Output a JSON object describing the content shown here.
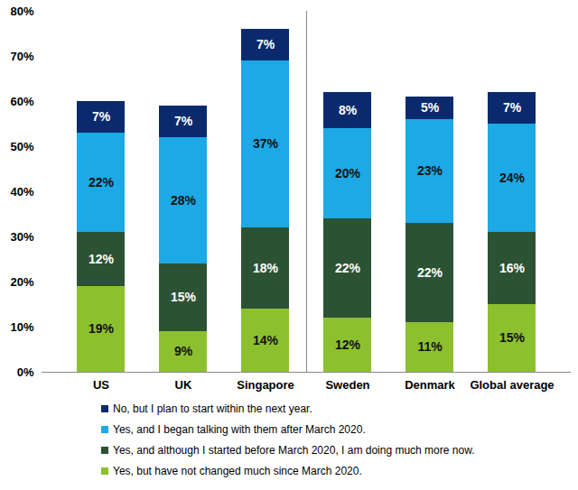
{
  "chart_data": {
    "type": "bar",
    "stacked": true,
    "data_labels": true,
    "grid": false,
    "legend": "bottom",
    "categories": [
      "US",
      "UK",
      "Singapore",
      "Sweden",
      "Denmark",
      "Global average"
    ],
    "series": [
      {
        "name": "Yes, but have not changed much since March 2020.",
        "color": "#8dc02f",
        "values": [
          19,
          9,
          14,
          12,
          11,
          15
        ],
        "value_labels": [
          "19%",
          "9%",
          "14%",
          "12%",
          "11%",
          "15%"
        ]
      },
      {
        "name": "Yes, and although I started before March 2020, I am doing much more now.",
        "color": "#2c5234",
        "values": [
          12,
          15,
          18,
          22,
          22,
          16
        ],
        "value_labels": [
          "12%",
          "15%",
          "18%",
          "22%",
          "22%",
          "16%"
        ]
      },
      {
        "name": "Yes, and I began talking with them after March 2020.",
        "color": "#1ca9e6",
        "values": [
          22,
          28,
          37,
          20,
          23,
          24
        ],
        "value_labels": [
          "22%",
          "28%",
          "37%",
          "20%",
          "23%",
          "24%"
        ]
      },
      {
        "name": "No, but I plan to start within the next year.",
        "color": "#0b2a6e",
        "values": [
          7,
          7,
          7,
          8,
          5,
          7
        ],
        "value_labels": [
          "7%",
          "7%",
          "7%",
          "8%",
          "5%",
          "7%"
        ]
      }
    ],
    "ylim": [
      0,
      80
    ],
    "yticks": [
      {
        "value": 0,
        "label": "0%"
      },
      {
        "value": 10,
        "label": "10%"
      },
      {
        "value": 20,
        "label": "20%"
      },
      {
        "value": 30,
        "label": "30%"
      },
      {
        "value": 40,
        "label": "40%"
      },
      {
        "value": 50,
        "label": "50%"
      },
      {
        "value": 60,
        "label": "60%"
      },
      {
        "value": 70,
        "label": "70%"
      },
      {
        "value": 80,
        "label": "80%"
      }
    ]
  }
}
